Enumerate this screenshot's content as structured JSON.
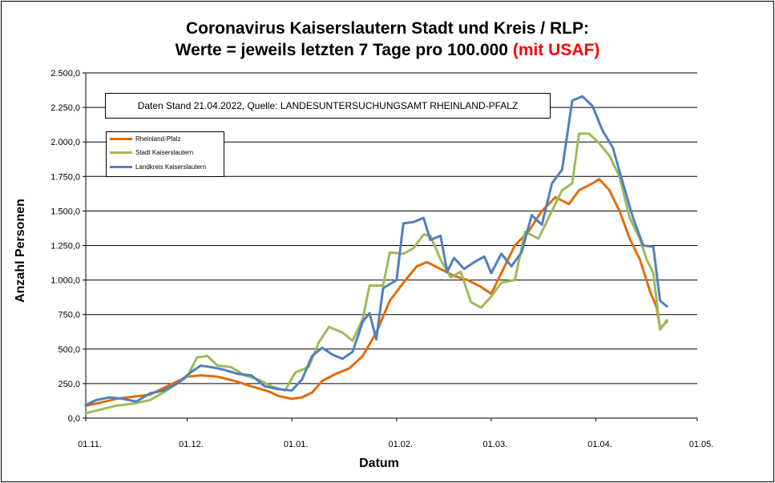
{
  "chart_data": {
    "type": "line",
    "title_line1": "Coronavirus Kaiserslautern Stadt und Kreis / RLP:",
    "title_line2_main": "Werte = jeweils letzten 7 Tage pro 100.000",
    "title_line2_highlight": "(mit USAF)",
    "annotation": "Daten Stand 21.04.2022, Quelle: LANDESUNTERSUCHUNGSAMT RHEINLAND-PFALZ",
    "xlabel": "Datum",
    "ylabel": "Anzahl Personen",
    "ylim": [
      0,
      2500
    ],
    "yticks": [
      0,
      250,
      500,
      750,
      1000,
      1250,
      1500,
      1750,
      2000,
      2250,
      2500
    ],
    "ytick_labels": [
      "0,0",
      "250,0",
      "500,0",
      "750,0",
      "1.000,0",
      "1.250,0",
      "1.500,0",
      "1.750,0",
      "2.000,0",
      "2.250,0",
      "2.500,0"
    ],
    "xlim": [
      "2021-11-01",
      "2022-05-01"
    ],
    "xticks": [
      "2021-11-01",
      "2021-12-01",
      "2022-01-01",
      "2022-02-01",
      "2022-03-01",
      "2022-04-01",
      "2022-05-01"
    ],
    "xtick_labels": [
      "01.11.",
      "01.12.",
      "01.01.",
      "01.02.",
      "01.03.",
      "01.04.",
      "01.05."
    ],
    "grid": "horizontal",
    "legend_position": "top-left",
    "series": [
      {
        "name": "Rheinland-Pfalz",
        "color": "#e36c0a",
        "points": [
          [
            "2021-11-01",
            90
          ],
          [
            "2021-11-05",
            110
          ],
          [
            "2021-11-10",
            140
          ],
          [
            "2021-11-15",
            155
          ],
          [
            "2021-11-20",
            170
          ],
          [
            "2021-11-25",
            230
          ],
          [
            "2021-12-01",
            300
          ],
          [
            "2021-12-05",
            310
          ],
          [
            "2021-12-10",
            300
          ],
          [
            "2021-12-15",
            270
          ],
          [
            "2021-12-20",
            230
          ],
          [
            "2021-12-25",
            195
          ],
          [
            "2021-12-28",
            160
          ],
          [
            "2022-01-01",
            140
          ],
          [
            "2022-01-04",
            150
          ],
          [
            "2022-01-07",
            185
          ],
          [
            "2022-01-10",
            270
          ],
          [
            "2022-01-14",
            320
          ],
          [
            "2022-01-18",
            360
          ],
          [
            "2022-01-22",
            450
          ],
          [
            "2022-01-26",
            620
          ],
          [
            "2022-01-30",
            850
          ],
          [
            "2022-02-03",
            980
          ],
          [
            "2022-02-07",
            1100
          ],
          [
            "2022-02-10",
            1130
          ],
          [
            "2022-02-14",
            1080
          ],
          [
            "2022-02-18",
            1030
          ],
          [
            "2022-02-22",
            1000
          ],
          [
            "2022-02-26",
            950
          ],
          [
            "2022-03-01",
            900
          ],
          [
            "2022-03-04",
            1050
          ],
          [
            "2022-03-08",
            1250
          ],
          [
            "2022-03-12",
            1350
          ],
          [
            "2022-03-16",
            1500
          ],
          [
            "2022-03-20",
            1600
          ],
          [
            "2022-03-24",
            1550
          ],
          [
            "2022-03-27",
            1650
          ],
          [
            "2022-03-31",
            1700
          ],
          [
            "2022-04-02",
            1730
          ],
          [
            "2022-04-05",
            1650
          ],
          [
            "2022-04-08",
            1500
          ],
          [
            "2022-04-11",
            1300
          ],
          [
            "2022-04-14",
            1150
          ],
          [
            "2022-04-17",
            920
          ],
          [
            "2022-04-19",
            800
          ],
          [
            "2022-04-20",
            650
          ],
          [
            "2022-04-22",
            700
          ]
        ]
      },
      {
        "name": "Stadt Kaiserslautern",
        "color": "#9bbb59",
        "points": [
          [
            "2021-11-01",
            35
          ],
          [
            "2021-11-05",
            60
          ],
          [
            "2021-11-10",
            90
          ],
          [
            "2021-11-15",
            105
          ],
          [
            "2021-11-20",
            130
          ],
          [
            "2021-11-25",
            200
          ],
          [
            "2021-12-01",
            300
          ],
          [
            "2021-12-04",
            440
          ],
          [
            "2021-12-07",
            450
          ],
          [
            "2021-12-10",
            380
          ],
          [
            "2021-12-14",
            370
          ],
          [
            "2021-12-18",
            310
          ],
          [
            "2021-12-22",
            280
          ],
          [
            "2021-12-26",
            230
          ],
          [
            "2021-12-30",
            200
          ],
          [
            "2022-01-02",
            330
          ],
          [
            "2022-01-06",
            370
          ],
          [
            "2022-01-09",
            550
          ],
          [
            "2022-01-12",
            660
          ],
          [
            "2022-01-16",
            620
          ],
          [
            "2022-01-19",
            560
          ],
          [
            "2022-01-22",
            720
          ],
          [
            "2022-01-24",
            960
          ],
          [
            "2022-01-28",
            960
          ],
          [
            "2022-01-30",
            1200
          ],
          [
            "2022-02-03",
            1190
          ],
          [
            "2022-02-06",
            1230
          ],
          [
            "2022-02-09",
            1330
          ],
          [
            "2022-02-11",
            1320
          ],
          [
            "2022-02-14",
            1150
          ],
          [
            "2022-02-17",
            1020
          ],
          [
            "2022-02-20",
            1060
          ],
          [
            "2022-02-23",
            840
          ],
          [
            "2022-02-26",
            800
          ],
          [
            "2022-03-01",
            880
          ],
          [
            "2022-03-04",
            980
          ],
          [
            "2022-03-08",
            1000
          ],
          [
            "2022-03-11",
            1350
          ],
          [
            "2022-03-15",
            1300
          ],
          [
            "2022-03-19",
            1500
          ],
          [
            "2022-03-22",
            1650
          ],
          [
            "2022-03-25",
            1700
          ],
          [
            "2022-03-27",
            2060
          ],
          [
            "2022-03-30",
            2060
          ],
          [
            "2022-04-02",
            1990
          ],
          [
            "2022-04-05",
            1900
          ],
          [
            "2022-04-08",
            1750
          ],
          [
            "2022-04-11",
            1450
          ],
          [
            "2022-04-14",
            1300
          ],
          [
            "2022-04-16",
            1150
          ],
          [
            "2022-04-18",
            1050
          ],
          [
            "2022-04-20",
            640
          ],
          [
            "2022-04-22",
            710
          ]
        ]
      },
      {
        "name": "Landkreis Kaiserslautern",
        "color": "#4f81bd",
        "points": [
          [
            "2021-11-01",
            95
          ],
          [
            "2021-11-04",
            130
          ],
          [
            "2021-11-08",
            150
          ],
          [
            "2021-11-12",
            140
          ],
          [
            "2021-11-16",
            120
          ],
          [
            "2021-11-20",
            180
          ],
          [
            "2021-11-24",
            200
          ],
          [
            "2021-11-28",
            250
          ],
          [
            "2021-12-02",
            330
          ],
          [
            "2021-12-05",
            380
          ],
          [
            "2021-12-08",
            370
          ],
          [
            "2021-12-12",
            350
          ],
          [
            "2021-12-16",
            320
          ],
          [
            "2021-12-20",
            310
          ],
          [
            "2021-12-24",
            230
          ],
          [
            "2021-12-28",
            210
          ],
          [
            "2022-01-01",
            200
          ],
          [
            "2022-01-04",
            280
          ],
          [
            "2022-01-07",
            450
          ],
          [
            "2022-01-10",
            510
          ],
          [
            "2022-01-13",
            460
          ],
          [
            "2022-01-16",
            430
          ],
          [
            "2022-01-19",
            480
          ],
          [
            "2022-01-22",
            700
          ],
          [
            "2022-01-24",
            760
          ],
          [
            "2022-01-26",
            570
          ],
          [
            "2022-01-28",
            940
          ],
          [
            "2022-02-01",
            1000
          ],
          [
            "2022-02-03",
            1410
          ],
          [
            "2022-02-06",
            1420
          ],
          [
            "2022-02-09",
            1450
          ],
          [
            "2022-02-11",
            1290
          ],
          [
            "2022-02-14",
            1320
          ],
          [
            "2022-02-16",
            1060
          ],
          [
            "2022-02-18",
            1160
          ],
          [
            "2022-02-21",
            1080
          ],
          [
            "2022-02-24",
            1130
          ],
          [
            "2022-02-27",
            1170
          ],
          [
            "2022-03-01",
            1050
          ],
          [
            "2022-03-04",
            1190
          ],
          [
            "2022-03-07",
            1100
          ],
          [
            "2022-03-10",
            1200
          ],
          [
            "2022-03-13",
            1470
          ],
          [
            "2022-03-16",
            1400
          ],
          [
            "2022-03-19",
            1700
          ],
          [
            "2022-03-22",
            1800
          ],
          [
            "2022-03-25",
            2300
          ],
          [
            "2022-03-28",
            2330
          ],
          [
            "2022-03-31",
            2260
          ],
          [
            "2022-04-03",
            2080
          ],
          [
            "2022-04-06",
            1960
          ],
          [
            "2022-04-09",
            1700
          ],
          [
            "2022-04-12",
            1450
          ],
          [
            "2022-04-15",
            1250
          ],
          [
            "2022-04-18",
            1240
          ],
          [
            "2022-04-20",
            850
          ],
          [
            "2022-04-22",
            810
          ]
        ]
      }
    ]
  }
}
